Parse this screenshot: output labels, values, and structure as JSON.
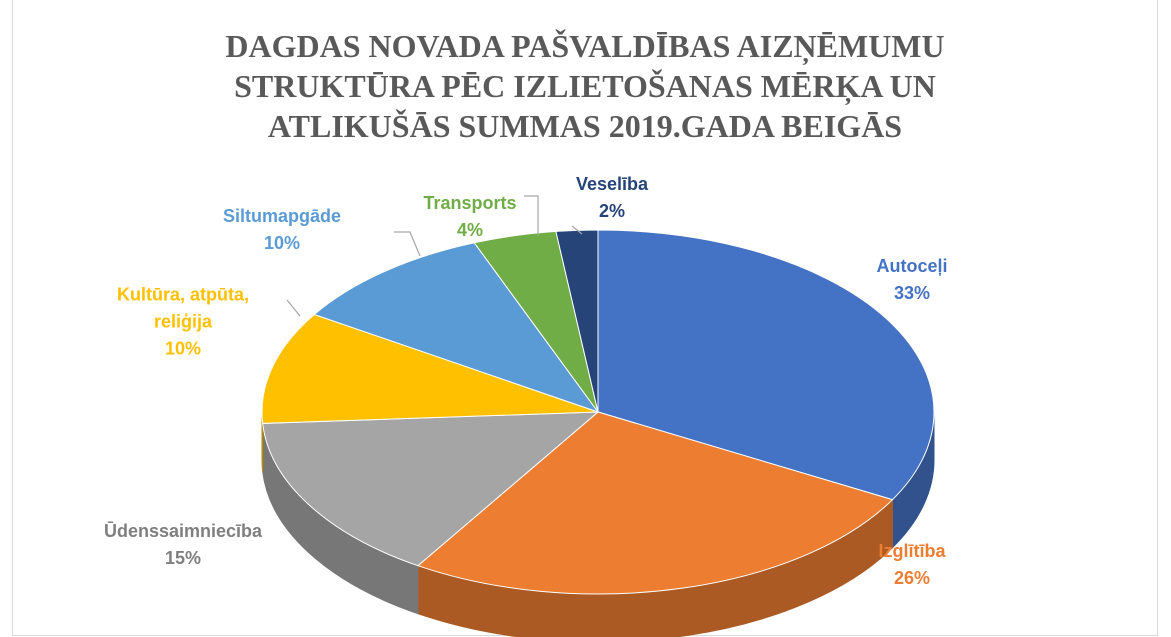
{
  "chart_data": {
    "type": "pie",
    "title": "DAGDAS NOVADA PAŠVALDĪBAS AIZŅĒMUMU STRUKTŪRA PĒC IZLIETOŠANAS MĒRĶA UN ATLIKUŠĀS SUMMAS 2019.GADA BEIGĀS",
    "categories": [
      "Autoceļi",
      "Izglītība",
      "Ūdenssaimniecība",
      "Kultūra, atpūta, reliģija",
      "Siltumapgāde",
      "Transports",
      "Veselība"
    ],
    "values": [
      33,
      26,
      15,
      10,
      10,
      4,
      2
    ],
    "value_labels": [
      "33%",
      "26%",
      "15%",
      "10%",
      "10%",
      "4%",
      "2%"
    ],
    "colors": [
      "#4472c4",
      "#ed7d31",
      "#a5a5a5",
      "#ffc000",
      "#5b9bd5",
      "#70ad47",
      "#264478"
    ]
  }
}
